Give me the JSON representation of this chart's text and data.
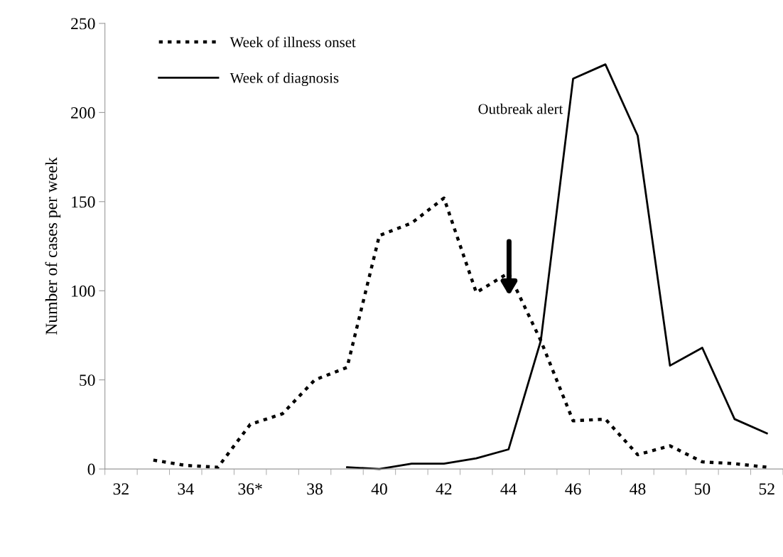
{
  "chart_data": {
    "type": "line",
    "ylabel": "Number of cases per week",
    "categories": [
      "32",
      null,
      "34",
      null,
      "36*",
      null,
      "38",
      null,
      "40",
      null,
      "42",
      null,
      "44",
      null,
      "46",
      null,
      "48",
      null,
      "50",
      null,
      "52"
    ],
    "series": [
      {
        "name": "Week of illness onset",
        "color": "#000000",
        "line_style": "dashed",
        "values": [
          null,
          5,
          2,
          1,
          25,
          31,
          50,
          57,
          131,
          138,
          152,
          99,
          110,
          72,
          27,
          28,
          8,
          13,
          4,
          3,
          1
        ]
      },
      {
        "name": "Week of diagnosis",
        "color": "#000000",
        "line_style": "solid",
        "values": [
          null,
          null,
          null,
          null,
          null,
          null,
          null,
          1,
          0,
          3,
          3,
          6,
          11,
          72,
          219,
          227,
          187,
          58,
          68,
          28,
          20
        ]
      }
    ],
    "ylim": [
      0,
      250
    ],
    "yticks": [
      0,
      50,
      100,
      150,
      200,
      250
    ],
    "annotations": [
      "Outbreak alert"
    ],
    "legend": "top left",
    "grid": false,
    "marker": "none"
  }
}
